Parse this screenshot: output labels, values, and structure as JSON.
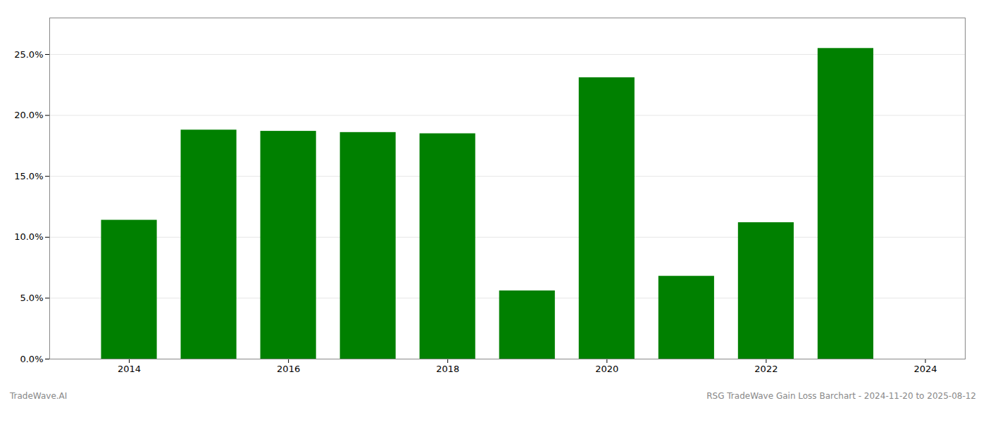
{
  "chart_data": {
    "type": "bar",
    "x": [
      2014,
      2015,
      2016,
      2017,
      2018,
      2019,
      2020,
      2021,
      2022,
      2023
    ],
    "values": [
      0.114,
      0.188,
      0.187,
      0.186,
      0.185,
      0.056,
      0.231,
      0.068,
      0.112,
      0.255
    ],
    "color": "#008000",
    "xlim": [
      2013.0,
      2024.5
    ],
    "xticks": [
      2014,
      2016,
      2018,
      2020,
      2022,
      2024
    ],
    "ylim": [
      0,
      0.28
    ],
    "yticks": [
      {
        "value": 0.0,
        "label": "0.0%"
      },
      {
        "value": 0.05,
        "label": "5.0%"
      },
      {
        "value": 0.1,
        "label": "10.0%"
      },
      {
        "value": 0.15,
        "label": "15.0%"
      },
      {
        "value": 0.2,
        "label": "20.0%"
      },
      {
        "value": 0.25,
        "label": "25.0%"
      }
    ],
    "grid": true,
    "annotations": [
      "TradeWave.AI",
      "RSG TradeWave Gain Loss Barchart - 2024-11-20 to 2025-08-12"
    ]
  }
}
